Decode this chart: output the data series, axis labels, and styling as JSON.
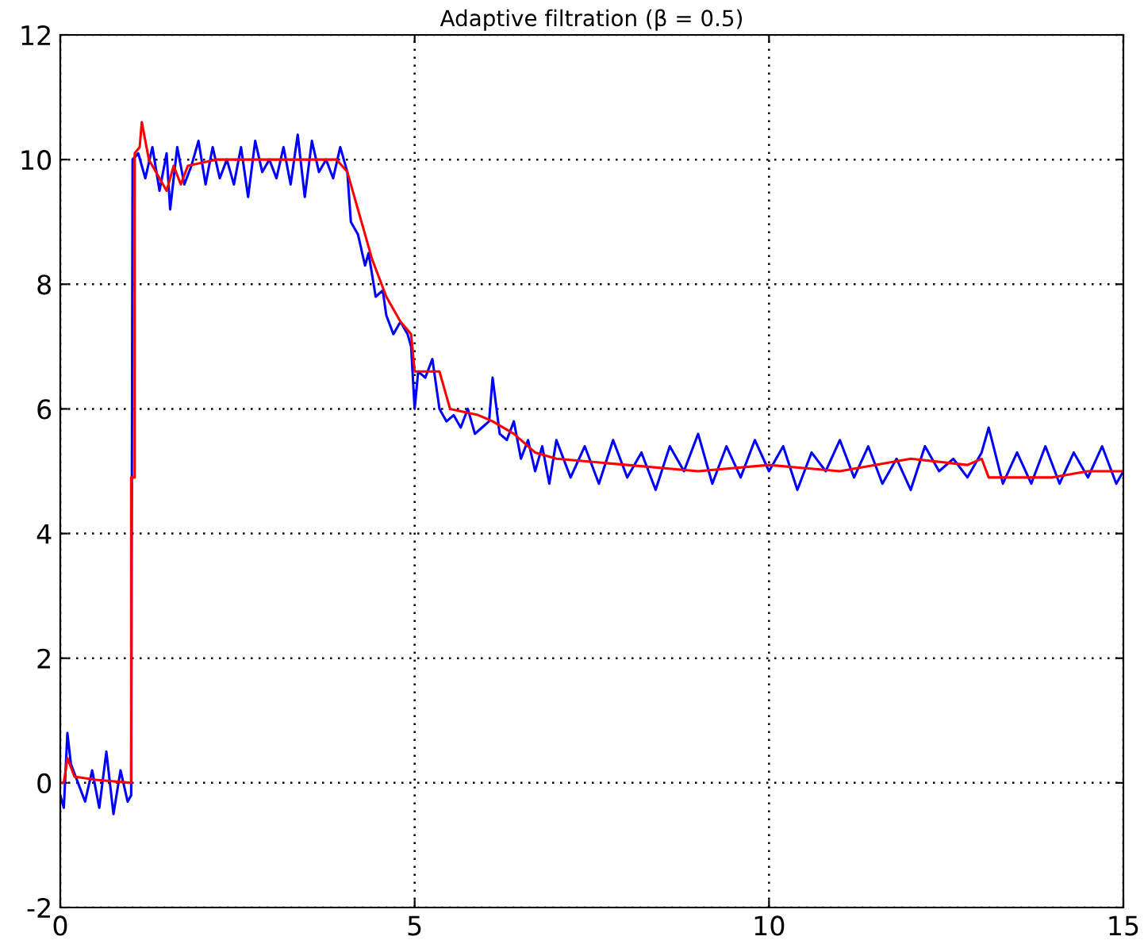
{
  "chart_data": {
    "type": "line",
    "title": "Adaptive filtration (β = 0.5)",
    "xlim": [
      0,
      15
    ],
    "ylim": [
      -2,
      12
    ],
    "xticks": [
      0,
      5,
      10,
      15
    ],
    "yticks": [
      -2,
      0,
      2,
      4,
      6,
      8,
      10,
      12
    ],
    "grid": true,
    "legend": false,
    "series": [
      {
        "color": "#0000ff",
        "x": [
          0,
          0.05,
          0.1,
          0.15,
          0.25,
          0.35,
          0.45,
          0.55,
          0.65,
          0.75,
          0.85,
          0.95,
          1.0,
          1.02,
          1.1,
          1.2,
          1.3,
          1.4,
          1.5,
          1.55,
          1.65,
          1.75,
          1.85,
          1.95,
          2.05,
          2.15,
          2.25,
          2.35,
          2.45,
          2.55,
          2.65,
          2.75,
          2.85,
          2.95,
          3.05,
          3.15,
          3.25,
          3.35,
          3.45,
          3.55,
          3.65,
          3.75,
          3.85,
          3.95,
          4.05,
          4.1,
          4.2,
          4.3,
          4.35,
          4.45,
          4.55,
          4.6,
          4.7,
          4.8,
          4.9,
          4.95,
          5.0,
          5.05,
          5.15,
          5.25,
          5.35,
          5.45,
          5.55,
          5.65,
          5.75,
          5.85,
          5.95,
          6.05,
          6.1,
          6.2,
          6.3,
          6.4,
          6.5,
          6.6,
          6.7,
          6.8,
          6.9,
          7.0,
          7.2,
          7.4,
          7.6,
          7.8,
          8.0,
          8.2,
          8.4,
          8.6,
          8.8,
          9.0,
          9.2,
          9.4,
          9.6,
          9.8,
          10.0,
          10.2,
          10.4,
          10.6,
          10.8,
          11.0,
          11.2,
          11.4,
          11.6,
          11.8,
          12.0,
          12.2,
          12.4,
          12.6,
          12.8,
          13.0,
          13.1,
          13.3,
          13.5,
          13.7,
          13.9,
          14.1,
          14.3,
          14.5,
          14.7,
          14.9,
          15.0
        ],
        "values": [
          -0.2,
          -0.4,
          0.8,
          0.3,
          0.0,
          -0.3,
          0.2,
          -0.4,
          0.5,
          -0.5,
          0.2,
          -0.3,
          -0.2,
          10.0,
          10.1,
          9.7,
          10.2,
          9.5,
          10.1,
          9.2,
          10.2,
          9.6,
          9.9,
          10.3,
          9.6,
          10.2,
          9.7,
          10.0,
          9.6,
          10.2,
          9.4,
          10.3,
          9.8,
          10.0,
          9.7,
          10.2,
          9.6,
          10.4,
          9.4,
          10.3,
          9.8,
          10.0,
          9.7,
          10.2,
          9.8,
          9.0,
          8.8,
          8.3,
          8.5,
          7.8,
          7.9,
          7.5,
          7.2,
          7.4,
          7.2,
          7.0,
          6.0,
          6.6,
          6.5,
          6.8,
          6.0,
          5.8,
          5.9,
          5.7,
          6.0,
          5.6,
          5.7,
          5.8,
          6.5,
          5.6,
          5.5,
          5.8,
          5.2,
          5.5,
          5.0,
          5.4,
          4.8,
          5.5,
          4.9,
          5.4,
          4.8,
          5.5,
          4.9,
          5.3,
          4.7,
          5.4,
          5.0,
          5.6,
          4.8,
          5.4,
          4.9,
          5.5,
          5.0,
          5.4,
          4.7,
          5.3,
          5.0,
          5.5,
          4.9,
          5.4,
          4.8,
          5.2,
          4.7,
          5.4,
          5.0,
          5.2,
          4.9,
          5.3,
          5.7,
          4.8,
          5.3,
          4.8,
          5.4,
          4.8,
          5.3,
          4.9,
          5.4,
          4.8,
          5.0
        ]
      },
      {
        "color": "#ff0000",
        "x": [
          0,
          0.05,
          0.1,
          0.2,
          0.5,
          1.0,
          1.0,
          1.05,
          1.05,
          1.12,
          1.15,
          1.25,
          1.4,
          1.5,
          1.6,
          1.7,
          1.8,
          2.2,
          3.0,
          3.5,
          3.9,
          4.05,
          4.2,
          4.4,
          4.6,
          4.8,
          4.95,
          5.0,
          5.2,
          5.35,
          5.5,
          5.9,
          6.1,
          6.4,
          6.7,
          7.0,
          8.0,
          9.0,
          10.0,
          11.0,
          12.0,
          12.8,
          13.0,
          13.1,
          14.0,
          14.5,
          15.0
        ],
        "values": [
          0.0,
          0.0,
          0.4,
          0.1,
          0.05,
          0.0,
          4.9,
          4.9,
          10.1,
          10.2,
          10.6,
          10.0,
          9.7,
          9.5,
          9.9,
          9.6,
          9.9,
          10.0,
          10.0,
          10.0,
          10.0,
          9.8,
          9.2,
          8.4,
          7.8,
          7.4,
          7.2,
          6.6,
          6.6,
          6.6,
          6.0,
          5.9,
          5.8,
          5.6,
          5.3,
          5.2,
          5.1,
          5.0,
          5.1,
          5.0,
          5.2,
          5.1,
          5.2,
          4.9,
          4.9,
          5.0,
          5.0
        ]
      }
    ]
  }
}
